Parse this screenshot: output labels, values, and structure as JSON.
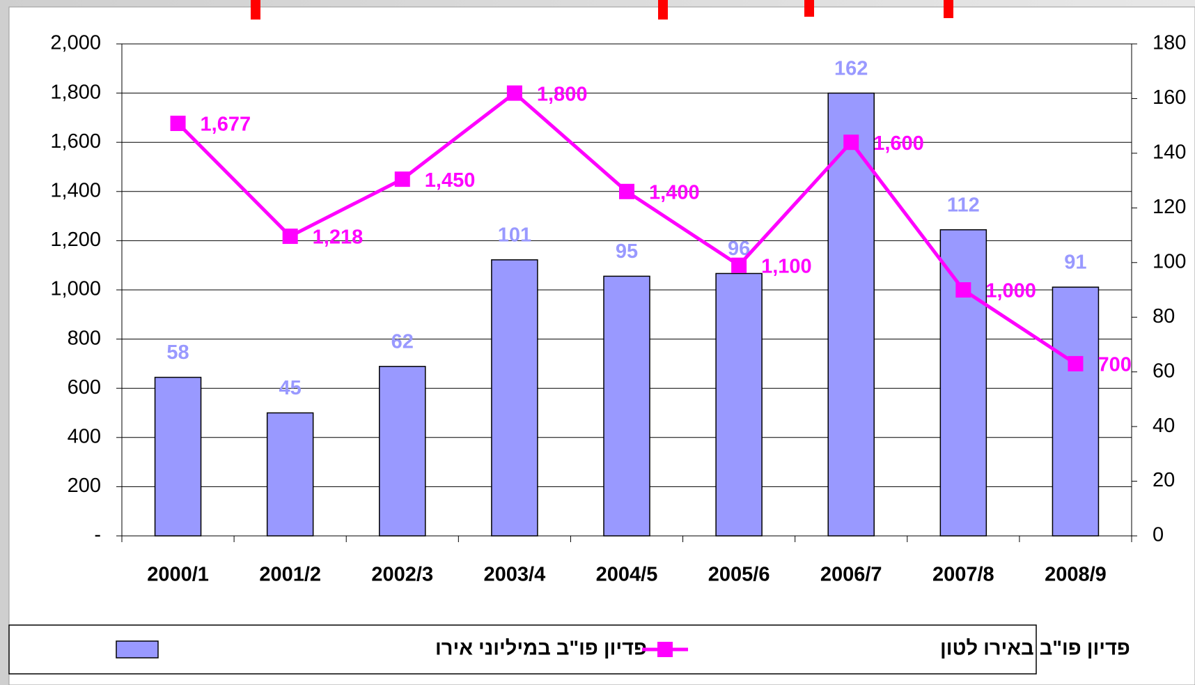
{
  "chart_data": {
    "type": "bar-line",
    "categories": [
      "2000/1",
      "2001/2",
      "2002/3",
      "2003/4",
      "2004/5",
      "2005/6",
      "2006/7",
      "2007/8",
      "2008/9"
    ],
    "series": [
      {
        "name": "פדיון פו\"ב במיליוני אירו",
        "type": "bar",
        "axis": "y2",
        "color": "#9999ff",
        "values": [
          58,
          45,
          62,
          101,
          95,
          96,
          162,
          112,
          91
        ]
      },
      {
        "name": "פדיון פו\"ב באירו לטון",
        "type": "line",
        "color": "#ff00ff",
        "values": [
          1677,
          1218,
          1450,
          1800,
          1400,
          1100,
          1600,
          1000,
          700
        ],
        "value_labels": [
          "1,677",
          "1,218",
          "1,450",
          "1,800",
          "1,400",
          "1,100",
          "1,600",
          "1,000",
          "700"
        ]
      }
    ],
    "ylim": [
      0,
      2000
    ],
    "yticks": [
      {
        "value": 0,
        "label": "-"
      },
      200,
      400,
      600,
      800,
      {
        "value": 1000,
        "label": "1,000"
      },
      {
        "value": 1200,
        "label": "1,200"
      },
      {
        "value": 1400,
        "label": "1,400"
      },
      {
        "value": 1600,
        "label": "1,600"
      },
      {
        "value": 1800,
        "label": "1,800"
      },
      {
        "value": 2000,
        "label": "2,000"
      }
    ],
    "y2lim": [
      0,
      180
    ],
    "y2ticks": [
      0,
      20,
      40,
      60,
      80,
      100,
      120,
      140,
      160,
      180
    ],
    "grid": true,
    "legend": "bottom"
  }
}
